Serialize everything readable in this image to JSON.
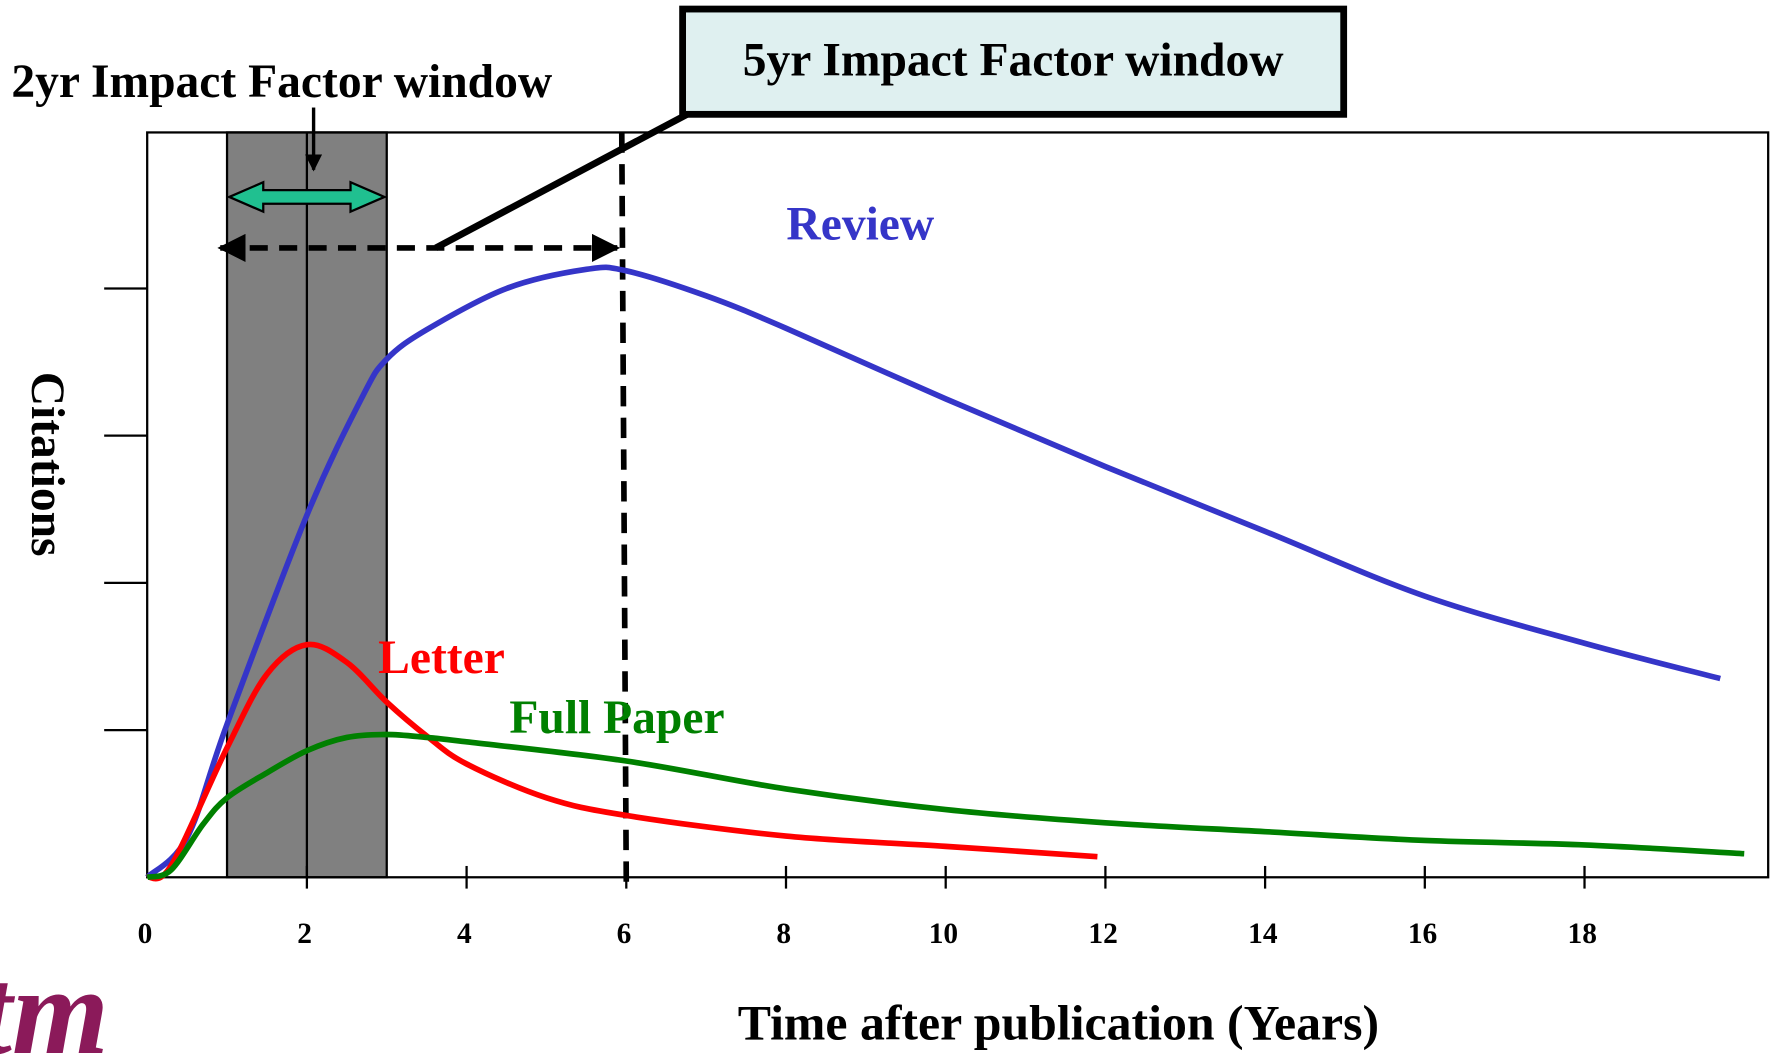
{
  "chart_data": {
    "type": "line",
    "x_axis_label": "Time after publication (Years)",
    "y_axis_label": "Citations",
    "xlim": [
      0,
      20.3
    ],
    "xticks": [
      0,
      2,
      4,
      6,
      8,
      10,
      12,
      14,
      16,
      18
    ],
    "ylim": [
      0,
      5.06
    ],
    "yticks": [
      1,
      2,
      3,
      4
    ],
    "series": [
      {
        "name": "Review",
        "color": "#3535c8",
        "x": [
          0,
          0.5,
          1,
          2,
          2.7,
          3,
          3.5,
          4.5,
          5.5,
          6,
          7,
          8,
          10,
          12,
          14,
          16,
          18,
          19.7
        ],
        "values": [
          0,
          0.27,
          1.04,
          2.46,
          3.27,
          3.52,
          3.72,
          4.0,
          4.13,
          4.12,
          3.95,
          3.73,
          3.25,
          2.79,
          2.35,
          1.91,
          1.59,
          1.35
        ]
      },
      {
        "name": "Letter",
        "color": "#ff0000",
        "x": [
          0,
          0.3,
          1,
          1.5,
          2,
          2.5,
          3,
          3.5,
          4,
          5,
          6,
          8,
          10,
          11.9
        ],
        "values": [
          0,
          0.08,
          0.88,
          1.38,
          1.58,
          1.46,
          1.19,
          0.96,
          0.77,
          0.54,
          0.42,
          0.28,
          0.21,
          0.14
        ]
      },
      {
        "name": "Full Paper",
        "color": "#008000",
        "x": [
          0,
          0.3,
          0.7,
          1,
          1.5,
          2,
          2.5,
          3,
          3.5,
          4,
          6,
          8,
          10,
          12,
          14,
          16,
          18,
          20
        ],
        "values": [
          0,
          0.05,
          0.36,
          0.54,
          0.71,
          0.86,
          0.95,
          0.97,
          0.95,
          0.92,
          0.79,
          0.6,
          0.46,
          0.37,
          0.31,
          0.25,
          0.22,
          0.16
        ]
      }
    ],
    "annotations": [
      {
        "text": "2yr Impact Factor window",
        "x_range": [
          1,
          3
        ],
        "center": 2
      },
      {
        "text": "5yr Impact Factor window",
        "x_range": [
          1,
          6
        ]
      }
    ],
    "logo": "tm"
  }
}
